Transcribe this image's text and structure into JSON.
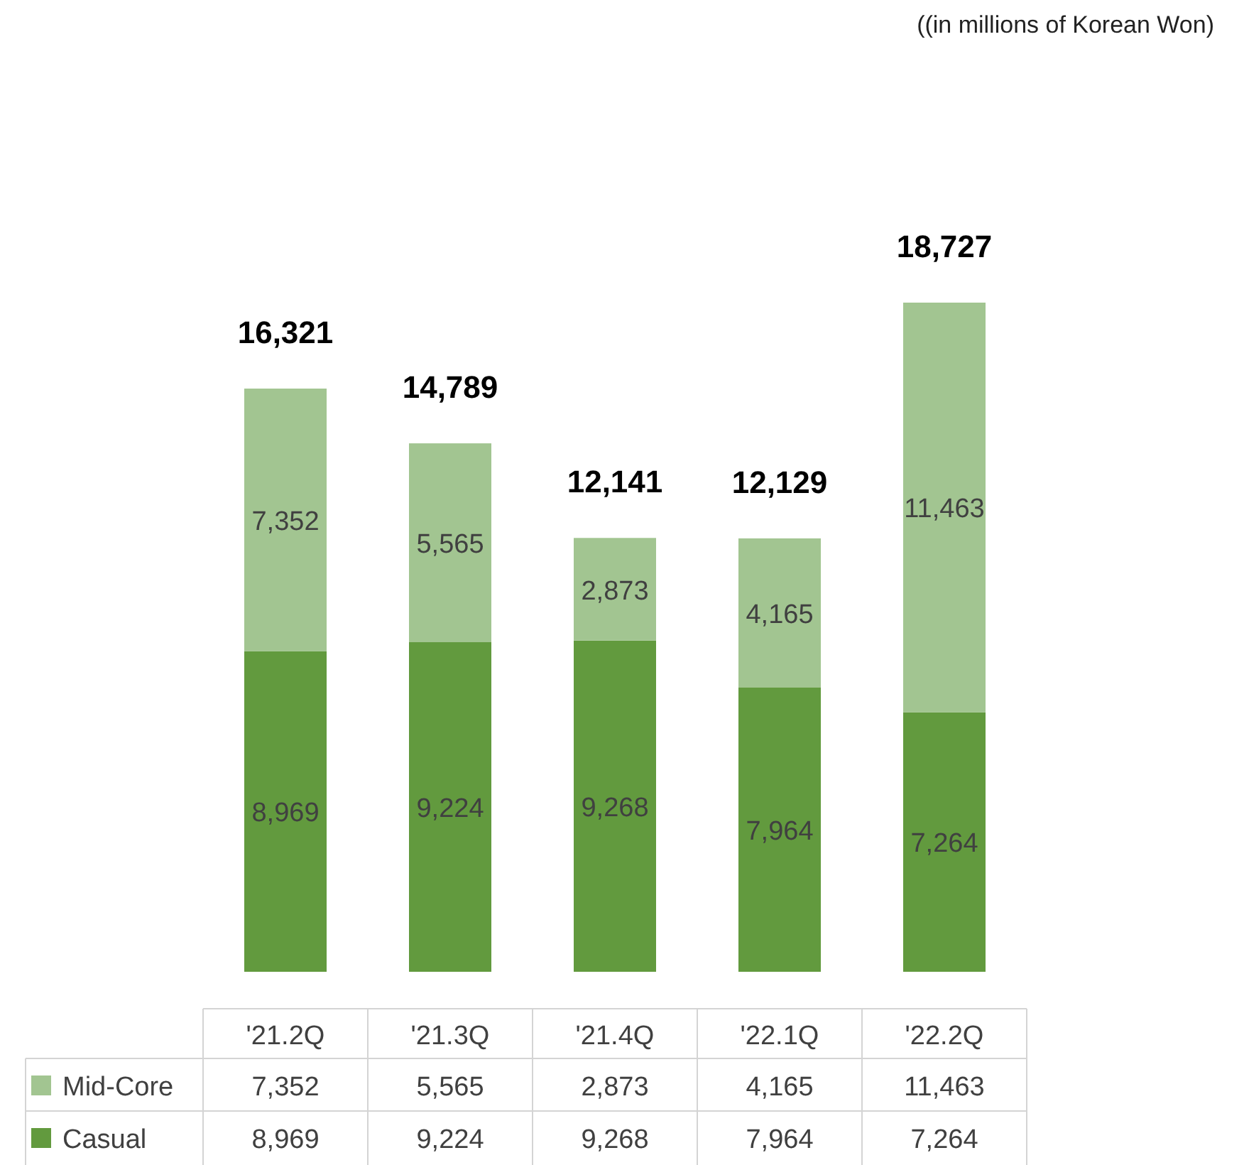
{
  "chart_data": {
    "type": "bar",
    "stacked": true,
    "categories": [
      "'21.2Q",
      "'21.3Q",
      "'21.4Q",
      "'22.1Q",
      "'22.2Q"
    ],
    "series": [
      {
        "name": "Casual",
        "color": "#629a3e",
        "values": [
          8969,
          9224,
          9268,
          7964,
          7264
        ],
        "value_labels": [
          "8,969",
          "9,224",
          "9,268",
          "7,964",
          "7,264"
        ]
      },
      {
        "name": "Mid-Core",
        "color": "#a2c591",
        "values": [
          7352,
          5565,
          2873,
          4165,
          11463
        ],
        "value_labels": [
          "7,352",
          "5,565",
          "2,873",
          "4,165",
          "11,463"
        ]
      }
    ],
    "totals": [
      "16,321",
      "14,789",
      "12,141",
      "12,129",
      "18,727"
    ],
    "legend": "bottom",
    "annotations": [
      "((in millions of Korean Won)"
    ]
  }
}
